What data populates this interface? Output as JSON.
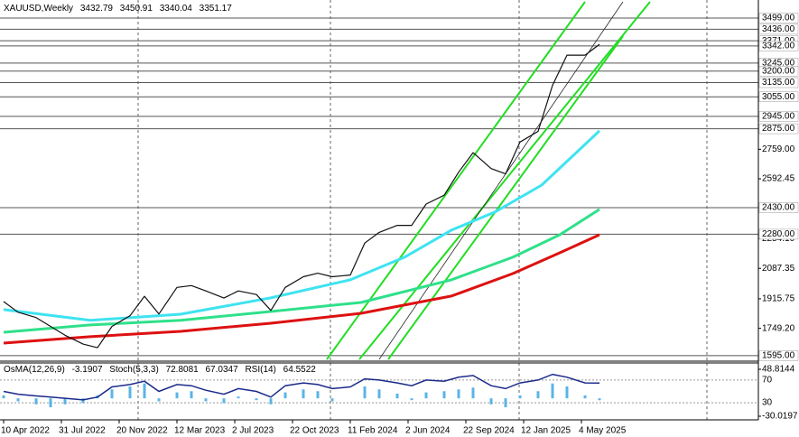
{
  "chart_data": {
    "type": "line",
    "title": "XAUUSD,Weekly",
    "header_values": [
      3432.79,
      3450.91,
      3340.04,
      3351.17
    ],
    "xlim": [
      -1,
      209
    ],
    "xticks": [
      {
        "value": 0,
        "label": "10 Apr 2022"
      },
      {
        "value": 16,
        "label": "31 Jul 2022"
      },
      {
        "value": 32,
        "label": "20 Nov 2022"
      },
      {
        "value": 48,
        "label": "12 Mar 2023"
      },
      {
        "value": 64,
        "label": "2 Jul 2023"
      },
      {
        "value": 80,
        "label": "22 Oct 2023"
      },
      {
        "value": 96,
        "label": "11 Feb 2024"
      },
      {
        "value": 112,
        "label": "2 Jun 2024"
      },
      {
        "value": 128,
        "label": "22 Sep 2024"
      },
      {
        "value": 144,
        "label": "12 Jan 2025"
      },
      {
        "value": 160,
        "label": "4 May 2025"
      }
    ],
    "ylim": [
      1564,
      3601
    ],
    "yticks": [
      {
        "value": 2759,
        "label": "2759.00"
      },
      {
        "value": 2592.45,
        "label": "2592.45"
      },
      {
        "value": 2254.1,
        "label": "2254.10"
      },
      {
        "value": 2087.35,
        "label": "2087.35"
      },
      {
        "value": 1915.75,
        "label": "1915.75"
      },
      {
        "value": 1749.2,
        "label": "1749.20"
      }
    ],
    "levels": [
      {
        "value": 3499,
        "label": "3499.00"
      },
      {
        "value": 3436,
        "label": "3436.00"
      },
      {
        "value": 3371,
        "label": "3371.00"
      },
      {
        "value": 3342,
        "label": "3342.00"
      },
      {
        "value": 3245,
        "label": "3245.00"
      },
      {
        "value": 3200,
        "label": "3200.00"
      },
      {
        "value": 3135,
        "label": "3135.00"
      },
      {
        "value": 3055,
        "label": "3055.00"
      },
      {
        "value": 2945,
        "label": "2945.00"
      },
      {
        "value": 2875,
        "label": "2875.00"
      },
      {
        "value": 2430,
        "label": "2430.00"
      },
      {
        "value": 2280,
        "label": "2280.00"
      },
      {
        "value": 1595,
        "label": "1595.00"
      }
    ],
    "series": [
      {
        "color": "#111111",
        "width": 1.2,
        "x": [
          0,
          4,
          9,
          13,
          17,
          22,
          26,
          30,
          35,
          39,
          43,
          48,
          52,
          56,
          61,
          65,
          70,
          74,
          78,
          83,
          87,
          91,
          96,
          100,
          104,
          109,
          113,
          117,
          122,
          126,
          130,
          135,
          139,
          143,
          148,
          152,
          156,
          161,
          165
        ],
        "values": [
          1900,
          1840,
          1810,
          1760,
          1710,
          1660,
          1640,
          1760,
          1820,
          1930,
          1830,
          1980,
          1990,
          1960,
          1920,
          1960,
          1940,
          1850,
          1980,
          2040,
          2060,
          2040,
          2050,
          2230,
          2290,
          2330,
          2330,
          2450,
          2500,
          2630,
          2740,
          2650,
          2620,
          2800,
          2860,
          3120,
          3290,
          3290,
          3351.17
        ]
      },
      {
        "color": "#3fe3f0",
        "width": 3,
        "x": [
          0,
          24,
          49,
          74,
          96,
          111,
          124,
          136,
          149,
          165
        ],
        "values": [
          1855,
          1794,
          1829,
          1921,
          2023,
          2150,
          2303,
          2405,
          2557,
          2863
        ]
      },
      {
        "color": "#2fe08a",
        "width": 3,
        "x": [
          0,
          24,
          49,
          74,
          99,
          124,
          141,
          154,
          165
        ],
        "values": [
          1727,
          1768,
          1794,
          1844,
          1895,
          2023,
          2150,
          2277,
          2420
        ]
      },
      {
        "color": "#dd1111",
        "width": 3,
        "x": [
          0,
          24,
          49,
          74,
          99,
          124,
          141,
          154,
          165
        ],
        "values": [
          1666,
          1702,
          1732,
          1778,
          1834,
          1931,
          2058,
          2175,
          2277
        ]
      }
    ],
    "indicator": {
      "osma_label": "OsMA(12,26,9)",
      "osma_value": -3.1907,
      "stoch_label": "Stoch(5,3,3)",
      "stoch_values": [
        72.8081,
        67.0347
      ],
      "rsi_label": "RSI(14)",
      "rsi_value": 64.5522,
      "ylim": [
        -36.1,
        59.4
      ],
      "yticks": [
        48.8144,
        -30.0197
      ],
      "y2lim": [
        0,
        100
      ],
      "y2ticks": [
        70,
        30
      ],
      "osma_color": "#5ab4e6",
      "osma": [
        5,
        -5,
        -10,
        -15,
        -10,
        -8,
        5,
        15,
        20,
        25,
        -5,
        10,
        12,
        -5,
        -8,
        3,
        -3,
        -10,
        10,
        15,
        12,
        -5,
        0,
        20,
        15,
        8,
        -3,
        10,
        12,
        15,
        18,
        -10,
        -15,
        5,
        12,
        25,
        20,
        5,
        -3.1907
      ],
      "rsi_color": "#1a2a8a",
      "rsi": [
        50,
        45,
        42,
        40,
        38,
        35,
        40,
        58,
        62,
        68,
        50,
        62,
        60,
        52,
        45,
        55,
        50,
        40,
        60,
        65,
        62,
        55,
        58,
        72,
        70,
        65,
        60,
        70,
        68,
        75,
        78,
        60,
        55,
        65,
        70,
        80,
        75,
        65,
        64.5522
      ]
    }
  }
}
